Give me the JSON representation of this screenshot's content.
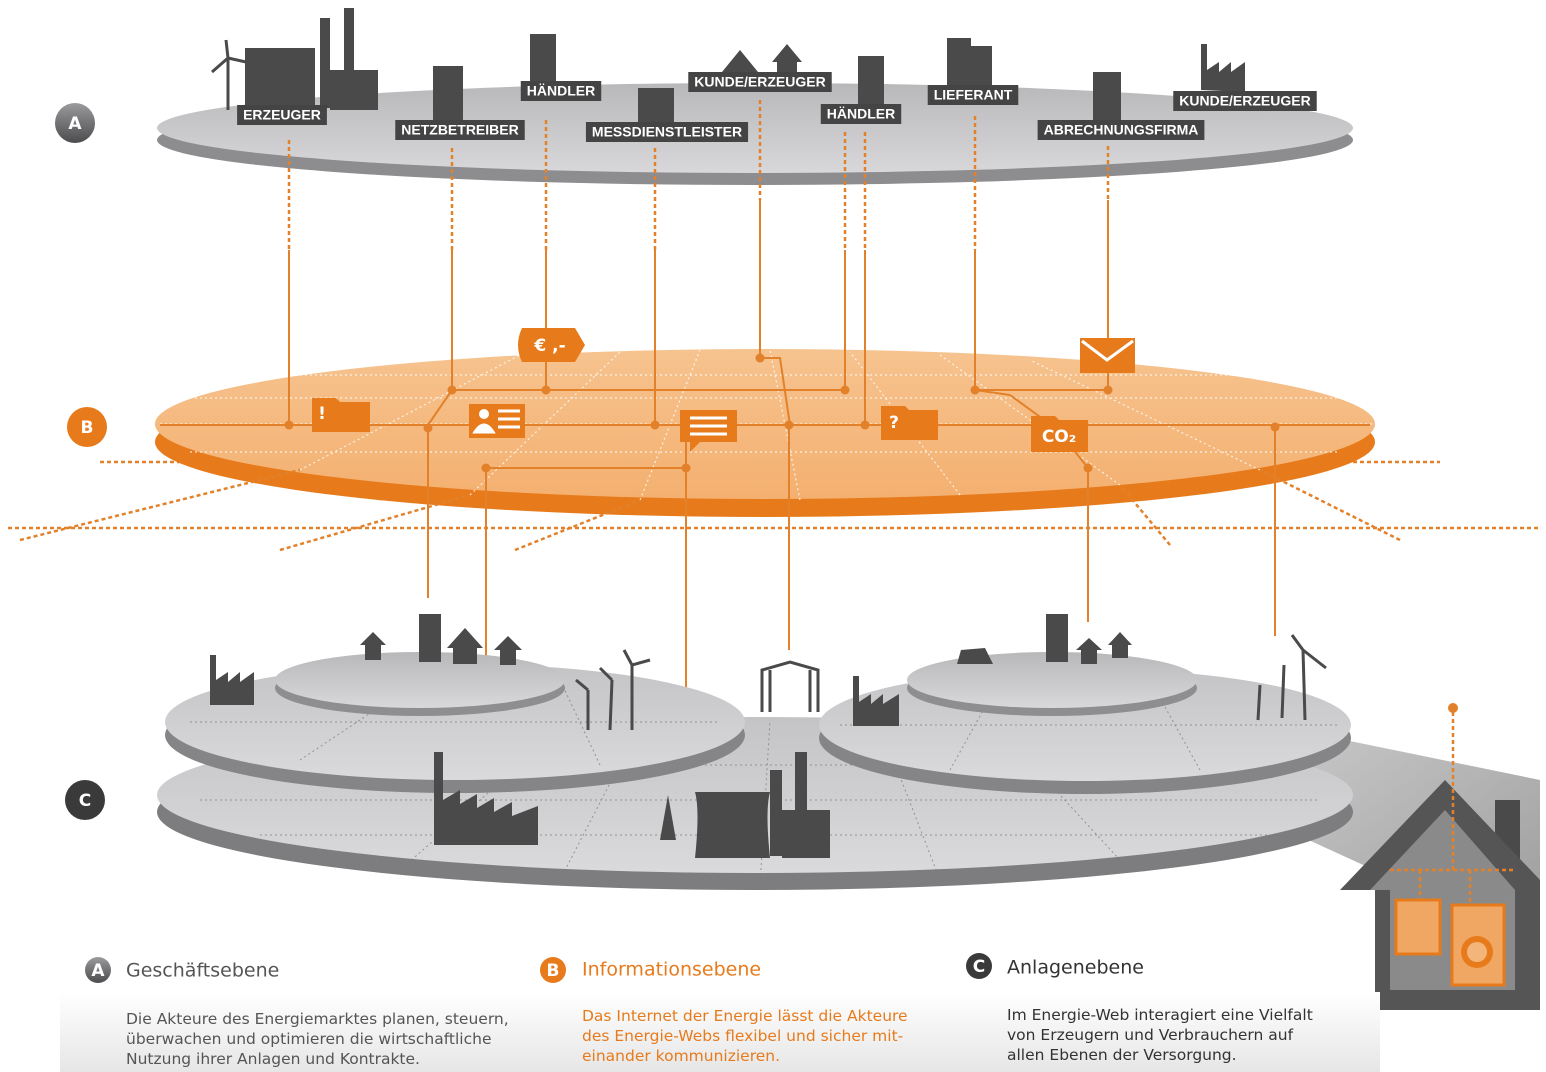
{
  "layers": [
    {
      "letter": "A",
      "title": "Geschäftsebene",
      "lines": [
        "Die Akteure des Energiemarktes planen, steuern,",
        "überwachen und optimieren die wirtschaftliche",
        "Nutzung ihrer Anlagen und Kontrakte."
      ]
    },
    {
      "letter": "B",
      "title": "Informationsebene",
      "lines": [
        "Das Internet der Energie lässt die Akteure",
        "des Energie-Webs flexibel und sicher mit-",
        "einander kommunizieren."
      ]
    },
    {
      "letter": "C",
      "title": "Anlagenebene",
      "lines": [
        "Im Energie-Web interagiert eine Vielfalt",
        "von Erzeugern und Verbrauchern auf",
        "allen Ebenen der Versorgung."
      ]
    }
  ],
  "actors": [
    "ERZEUGER",
    "NETZBETREIBER",
    "HÄNDLER",
    "MESSDIENSTLEISTER",
    "KUNDE/ERZEUGER",
    "HÄNDLER",
    "LIEFERANT",
    "ABRECHNUNGSFIRMA",
    "KUNDE/ERZEUGER"
  ],
  "icons": {
    "price": "€ ,-",
    "alert": "!",
    "question": "?",
    "co2": "CO₂"
  }
}
